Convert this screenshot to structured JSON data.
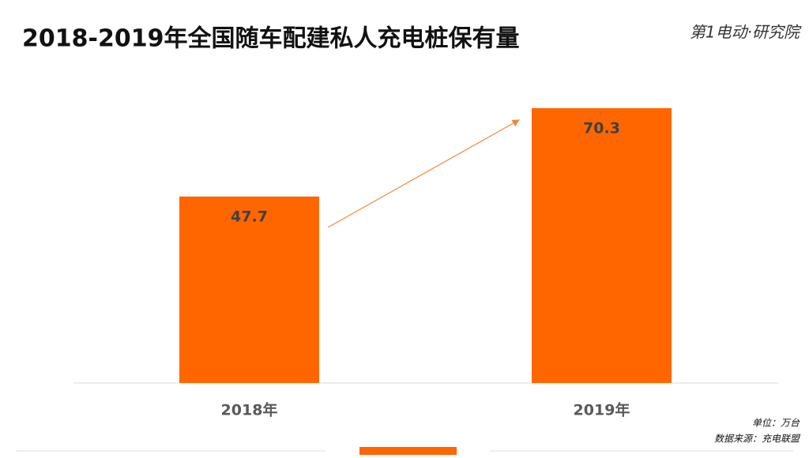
{
  "chart_data": {
    "type": "bar",
    "title": "2018-2019年全国随车配建私人充电桩保有量",
    "brand": "第1电动·研究院",
    "categories": [
      "2018年",
      "2019年"
    ],
    "values": [
      47.7,
      70.3
    ],
    "color": "#ff6600",
    "unit_note": "单位：万台",
    "source_note": "数据来源：充电联盟"
  }
}
